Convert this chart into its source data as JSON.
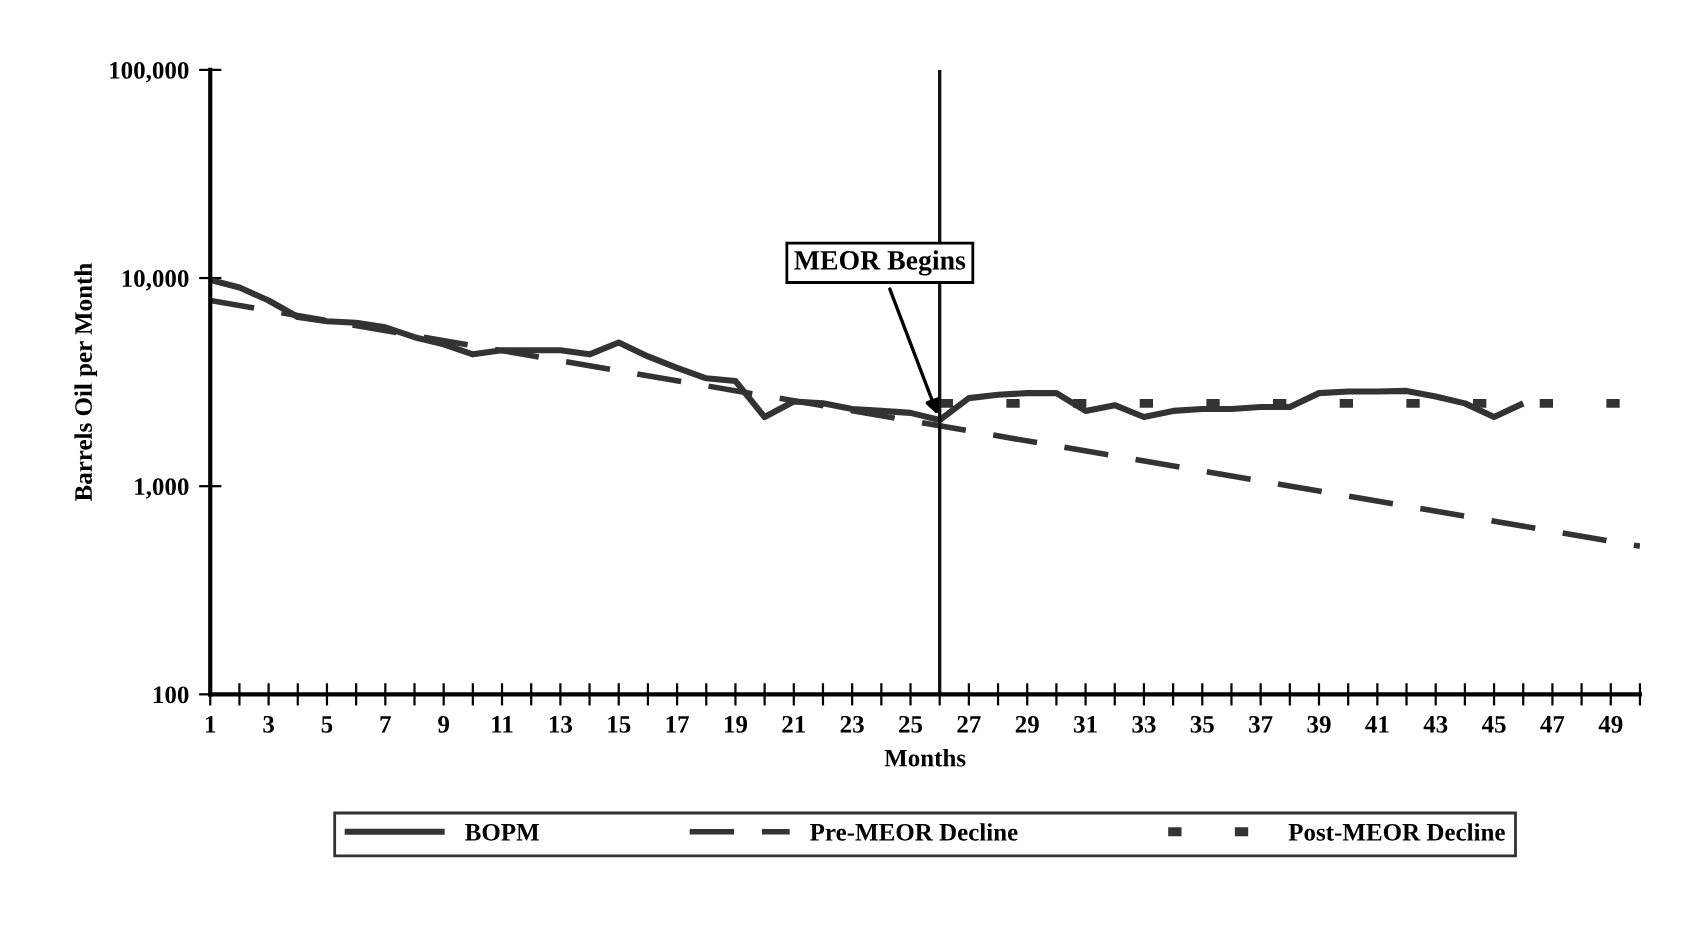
{
  "chart_data": {
    "type": "line",
    "xlabel": "Months",
    "ylabel": "Barrels Oil per Month",
    "log": "y",
    "grid": false,
    "legend": "bottom",
    "xlim": [
      1,
      50
    ],
    "xticks": [
      1,
      {
        "value": 2,
        "label": null
      },
      3,
      {
        "value": 4,
        "label": null
      },
      5,
      {
        "value": 6,
        "label": null
      },
      7,
      {
        "value": 8,
        "label": null
      },
      9,
      {
        "value": 10,
        "label": null
      },
      11,
      {
        "value": 12,
        "label": null
      },
      13,
      {
        "value": 14,
        "label": null
      },
      15,
      {
        "value": 16,
        "label": null
      },
      17,
      {
        "value": 18,
        "label": null
      },
      19,
      {
        "value": 20,
        "label": null
      },
      21,
      {
        "value": 22,
        "label": null
      },
      23,
      {
        "value": 24,
        "label": null
      },
      25,
      {
        "value": 26,
        "label": null
      },
      27,
      {
        "value": 28,
        "label": null
      },
      29,
      {
        "value": 30,
        "label": null
      },
      31,
      {
        "value": 32,
        "label": null
      },
      33,
      {
        "value": 34,
        "label": null
      },
      35,
      {
        "value": 36,
        "label": null
      },
      37,
      {
        "value": 38,
        "label": null
      },
      39,
      {
        "value": 40,
        "label": null
      },
      41,
      {
        "value": 42,
        "label": null
      },
      43,
      {
        "value": 44,
        "label": null
      },
      45,
      {
        "value": 46,
        "label": null
      },
      47,
      {
        "value": 48,
        "label": null
      },
      49,
      {
        "value": 50,
        "label": null
      }
    ],
    "ylim": [
      100,
      100000
    ],
    "yticks": [
      {
        "value": 100,
        "label": "100"
      },
      {
        "value": 1000,
        "label": "1,000"
      },
      {
        "value": 10000,
        "label": "10,000"
      },
      {
        "value": 100000,
        "label": "100,000"
      }
    ],
    "series": [
      {
        "name": "BOPM",
        "color": "#333333",
        "line_style": "solid",
        "x": [
          1,
          2,
          3,
          4,
          5,
          6,
          7,
          8,
          9,
          10,
          11,
          12,
          13,
          14,
          15,
          16,
          17,
          18,
          19,
          20,
          21,
          22,
          23,
          24,
          25,
          26,
          27,
          28,
          29,
          30,
          31,
          32,
          33,
          34,
          35,
          36,
          37,
          38,
          39,
          40,
          41,
          42,
          43,
          44,
          45,
          46
        ],
        "values": [
          9800,
          9000,
          7800,
          6500,
          6200,
          6100,
          5800,
          5200,
          4800,
          4300,
          4500,
          4500,
          4500,
          4300,
          4900,
          4200,
          3700,
          3300,
          3200,
          2150,
          2550,
          2500,
          2350,
          2300,
          2250,
          2080,
          2650,
          2750,
          2800,
          2800,
          2300,
          2450,
          2150,
          2300,
          2350,
          2350,
          2400,
          2400,
          2800,
          2850,
          2850,
          2870,
          2700,
          2500,
          2150,
          2500
        ]
      },
      {
        "name": "Pre-MEOR Decline",
        "color": "#333333",
        "line_style": "dashed",
        "x": [
          1,
          50
        ],
        "values": [
          7800,
          515
        ]
      },
      {
        "name": "Post-MEOR Decline",
        "color": "#333333",
        "line_style": "dotted",
        "x": [
          26,
          50
        ],
        "values": [
          2500,
          2500
        ]
      }
    ],
    "ref_lines": [
      {
        "axis": "x",
        "value": 26,
        "color": "#111111"
      }
    ],
    "annotations": [
      {
        "text": "MEOR Begins",
        "x": 26,
        "y": 2080
      }
    ]
  }
}
